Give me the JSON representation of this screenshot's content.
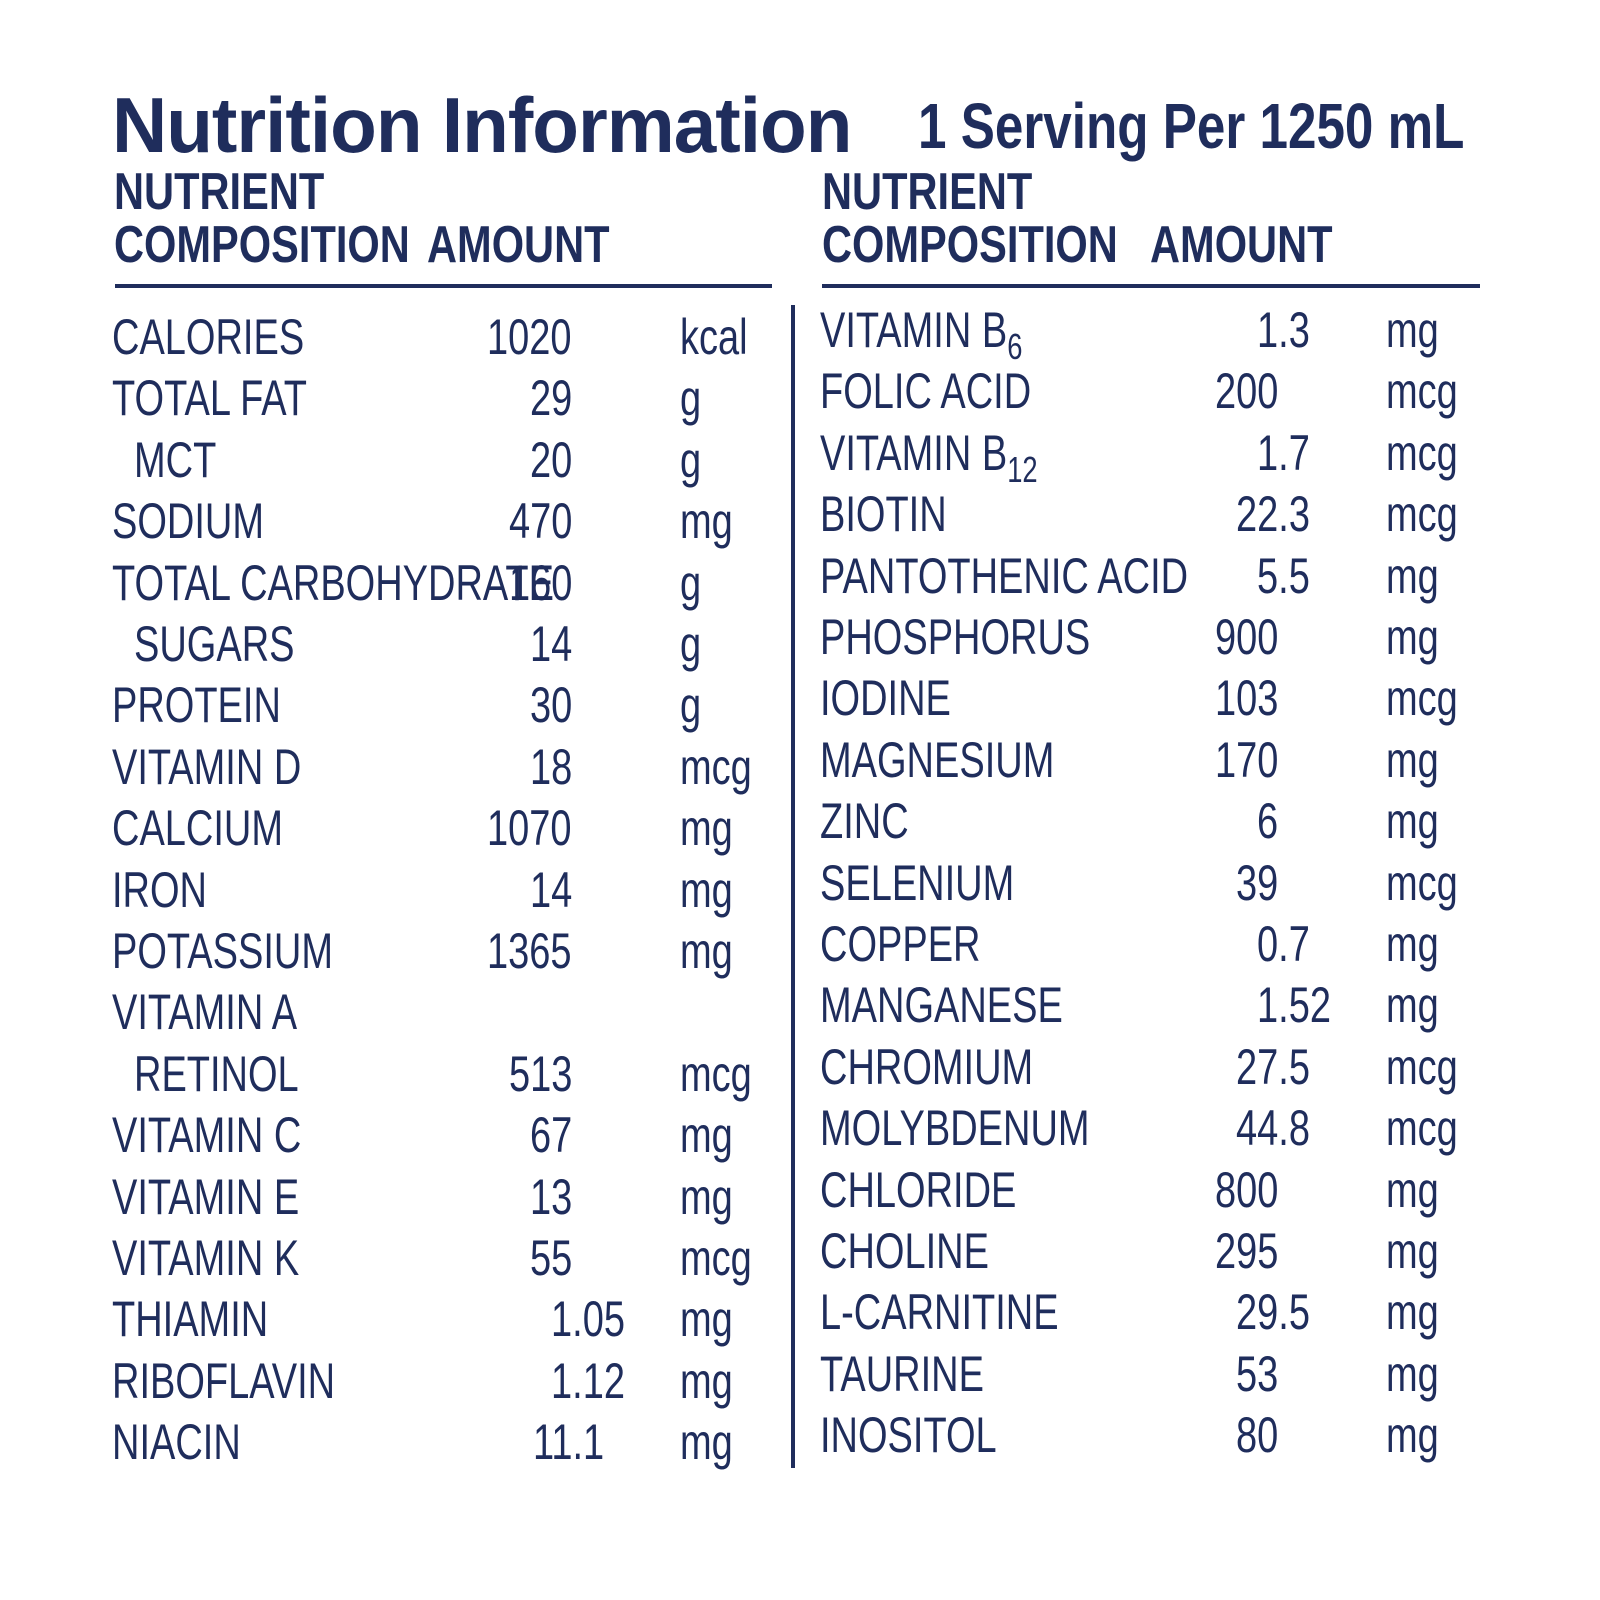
{
  "title": "Nutrition Information",
  "subtitle": "1 Serving Per 1250 mL",
  "columns": [
    {
      "nutrient_header": [
        "NUTRIENT",
        "COMPOSITION"
      ],
      "amount_header": "AMOUNT",
      "rows": [
        {
          "name": "CALORIES",
          "amount": "1020",
          "unit": "kcal"
        },
        {
          "name": "TOTAL FAT",
          "amount": "29",
          "unit": "g"
        },
        {
          "name": "MCT",
          "amount": "20",
          "unit": "g",
          "indent": true
        },
        {
          "name": "SODIUM",
          "amount": "470",
          "unit": "mg"
        },
        {
          "name": "TOTAL CARBOHYDRATE",
          "amount": "160",
          "unit": "g"
        },
        {
          "name": "SUGARS",
          "amount": "14",
          "unit": "g",
          "indent": true
        },
        {
          "name": "PROTEIN",
          "amount": "30",
          "unit": "g"
        },
        {
          "name": "VITAMIN D",
          "amount": "18",
          "unit": "mcg"
        },
        {
          "name": "CALCIUM",
          "amount": "1070",
          "unit": "mg"
        },
        {
          "name": "IRON",
          "amount": "14",
          "unit": "mg"
        },
        {
          "name": "POTASSIUM",
          "amount": "1365",
          "unit": "mg"
        },
        {
          "name": "VITAMIN A"
        },
        {
          "name": "RETINOL",
          "amount": "513",
          "unit": "mcg",
          "indent": true
        },
        {
          "name": "VITAMIN C",
          "amount": "67",
          "unit": "mg"
        },
        {
          "name": "VITAMIN E",
          "amount": "13",
          "unit": "mg"
        },
        {
          "name": "VITAMIN K",
          "amount": "55",
          "unit": "mcg"
        },
        {
          "name": "THIAMIN",
          "amount": "1.05",
          "unit": "mg"
        },
        {
          "name": "RIBOFLAVIN",
          "amount": "1.12",
          "unit": "mg"
        },
        {
          "name": "NIACIN",
          "amount": "11.1",
          "unit": "mg"
        }
      ]
    },
    {
      "nutrient_header": [
        "NUTRIENT",
        "COMPOSITION"
      ],
      "amount_header": "AMOUNT",
      "rows": [
        {
          "name": "VITAMIN B",
          "sub": "6",
          "amount": "1.3",
          "unit": "mg"
        },
        {
          "name": "FOLIC ACID",
          "amount": "200",
          "unit": "mcg"
        },
        {
          "name": "VITAMIN B",
          "sub": "12",
          "amount": "1.7",
          "unit": "mcg"
        },
        {
          "name": "BIOTIN",
          "amount": "22.3",
          "unit": "mcg"
        },
        {
          "name": "PANTOTHENIC ACID",
          "amount": "5.5",
          "unit": "mg"
        },
        {
          "name": "PHOSPHORUS",
          "amount": "900",
          "unit": "mg"
        },
        {
          "name": "IODINE",
          "amount": "103",
          "unit": "mcg"
        },
        {
          "name": "MAGNESIUM",
          "amount": "170",
          "unit": "mg"
        },
        {
          "name": "ZINC",
          "amount": "6",
          "unit": "mg"
        },
        {
          "name": "SELENIUM",
          "amount": "39",
          "unit": "mcg"
        },
        {
          "name": "COPPER",
          "amount": "0.7",
          "unit": "mg"
        },
        {
          "name": "MANGANESE",
          "amount": "1.52",
          "unit": "mg"
        },
        {
          "name": "CHROMIUM",
          "amount": "27.5",
          "unit": "mcg"
        },
        {
          "name": "MOLYBDENUM",
          "amount": "44.8",
          "unit": "mcg"
        },
        {
          "name": "CHLORIDE",
          "amount": "800",
          "unit": "mg"
        },
        {
          "name": "CHOLINE",
          "amount": "295",
          "unit": "mg"
        },
        {
          "name": "L-CARNITINE",
          "amount": "29.5",
          "unit": "mg"
        },
        {
          "name": "TAURINE",
          "amount": "53",
          "unit": "mg"
        },
        {
          "name": "INOSITOL",
          "amount": "80",
          "unit": "mg"
        }
      ]
    }
  ]
}
